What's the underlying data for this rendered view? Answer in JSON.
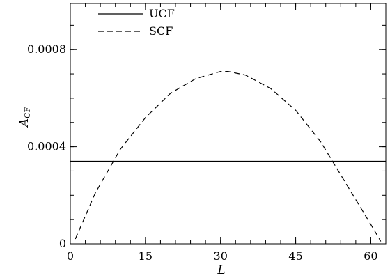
{
  "chart_data": {
    "type": "line",
    "xlabel": "L",
    "ylabel_main": "A",
    "ylabel_sub": "CF",
    "xlim": [
      0,
      63
    ],
    "ylim": [
      0,
      0.00099
    ],
    "xticks": [
      0,
      15,
      30,
      45,
      60
    ],
    "xtick_labels": [
      "0",
      "15",
      "30",
      "45",
      "60"
    ],
    "yticks": [
      0,
      0.0004,
      0.0008
    ],
    "ytick_labels": [
      "0",
      "0.0004",
      "0.0008"
    ],
    "x_minor_step": 3,
    "y_minor_step": 0.0001,
    "grid": false,
    "legend_position": "top-left",
    "series": [
      {
        "name": "UCF",
        "style": "solid",
        "x": [
          0,
          63
        ],
        "y": [
          0.00034,
          0.00034
        ]
      },
      {
        "name": "SCF",
        "style": "dashed",
        "x": [
          1,
          5,
          10,
          15,
          20,
          25,
          30,
          31.5,
          35,
          40,
          45,
          50,
          55,
          60,
          62
        ],
        "y": [
          2e-05,
          0.00021,
          0.00039,
          0.00052,
          0.00062,
          0.00068,
          0.00071,
          0.00071,
          0.000695,
          0.00064,
          0.00055,
          0.00042,
          0.00025,
          8e-05,
          1e-05
        ]
      }
    ]
  }
}
